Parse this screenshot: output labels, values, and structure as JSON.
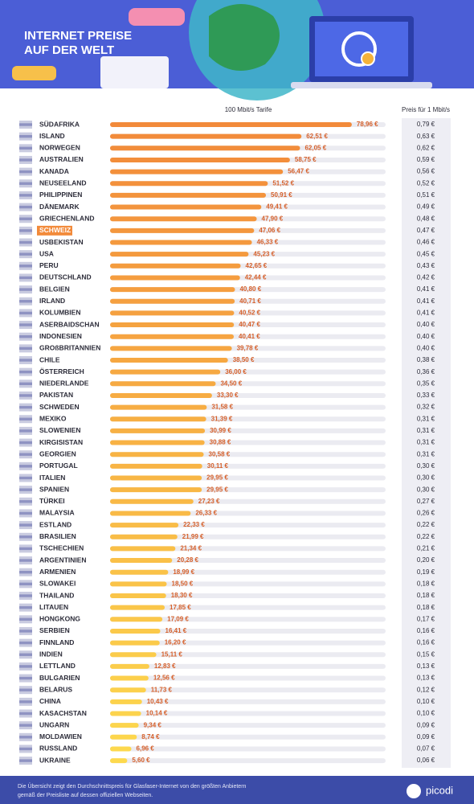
{
  "chart_data": {
    "type": "bar",
    "orientation": "horizontal",
    "title": [
      "INTERNET PREISE",
      "AUF DER WELT"
    ],
    "categories": [
      "SÜDAFRIKA",
      "ISLAND",
      "NORWEGEN",
      "AUSTRALIEN",
      "KANADA",
      "NEUSEELAND",
      "PHILIPPINEN",
      "DÄNEMARK",
      "GRIECHENLAND",
      "SCHWEIZ",
      "USBEKISTAN",
      "USA",
      "PERU",
      "DEUTSCHLAND",
      "BELGIEN",
      "IRLAND",
      "KOLUMBIEN",
      "ASERBAIDSCHAN",
      "INDONESIEN",
      "GROßBRITANNIEN",
      "CHILE",
      "ÖSTERREICH",
      "NIEDERLANDE",
      "PAKISTAN",
      "SCHWEDEN",
      "MEXIKO",
      "SLOWENIEN",
      "KIRGISISTAN",
      "GEORGIEN",
      "PORTUGAL",
      "ITALIEN",
      "SPANIEN",
      "TÜRKEI",
      "MALAYSIA",
      "ESTLAND",
      "BRASILIEN",
      "TSCHECHIEN",
      "ARGENTINIEN",
      "ARMENIEN",
      "SLOWAKEI",
      "THAILAND",
      "LITAUEN",
      "HONGKONG",
      "SERBIEN",
      "FINNLAND",
      "INDIEN",
      "LETTLAND",
      "BULGARIEN",
      "BELARUS",
      "CHINA",
      "KASACHSTAN",
      "UNGARN",
      "MOLDAWIEN",
      "RUSSLAND",
      "UKRAINE"
    ],
    "series": [
      {
        "name": "100 Mbit/s Tarife",
        "color": "#f28a3a",
        "color_end": "#fdd94e",
        "values": [
          78.96,
          62.51,
          62.05,
          58.75,
          56.47,
          51.52,
          50.91,
          49.41,
          47.9,
          47.06,
          46.33,
          45.23,
          42.65,
          42.44,
          40.8,
          40.71,
          40.52,
          40.47,
          40.41,
          39.78,
          38.5,
          36.0,
          34.5,
          33.3,
          31.58,
          31.39,
          30.99,
          30.88,
          30.58,
          30.11,
          29.95,
          29.95,
          27.23,
          26.33,
          22.33,
          21.99,
          21.34,
          20.28,
          18.99,
          18.5,
          18.3,
          17.85,
          17.09,
          16.41,
          16.2,
          15.11,
          12.83,
          12.56,
          11.73,
          10.43,
          10.14,
          9.34,
          8.74,
          6.96,
          5.6
        ],
        "value_labels": [
          "78,96 €",
          "62,51 €",
          "62,05 €",
          "58,75 €",
          "56,47 €",
          "51,52 €",
          "50,91 €",
          "49,41 €",
          "47,90 €",
          "47,06 €",
          "46,33 €",
          "45,23 €",
          "42,65 €",
          "42,44 €",
          "40,80 €",
          "40,71 €",
          "40,52 €",
          "40,47 €",
          "40,41 €",
          "39,78 €",
          "38,50 €",
          "36,00 €",
          "34,50 €",
          "33,30 €",
          "31,58 €",
          "31,39 €",
          "30,99 €",
          "30,88 €",
          "30,58 €",
          "30,11 €",
          "29,95 €",
          "29,95 €",
          "27,23 €",
          "26,33 €",
          "22,33 €",
          "21,99 €",
          "21,34 €",
          "20,28 €",
          "18,99 €",
          "18,50 €",
          "18,30 €",
          "17,85 €",
          "17,09 €",
          "16,41 €",
          "16,20 €",
          "15,11 €",
          "12,83 €",
          "12,56 €",
          "11,73 €",
          "10,43 €",
          "10,14 €",
          "9,34 €",
          "8,74 €",
          "6,96 €",
          "5,60 €"
        ]
      },
      {
        "name": "Preis für 1 Mbit/s",
        "values": [
          0.79,
          0.63,
          0.62,
          0.59,
          0.56,
          0.52,
          0.51,
          0.49,
          0.48,
          0.47,
          0.46,
          0.45,
          0.43,
          0.42,
          0.41,
          0.41,
          0.41,
          0.4,
          0.4,
          0.4,
          0.38,
          0.36,
          0.35,
          0.33,
          0.32,
          0.31,
          0.31,
          0.31,
          0.31,
          0.3,
          0.3,
          0.3,
          0.27,
          0.26,
          0.22,
          0.22,
          0.21,
          0.2,
          0.19,
          0.18,
          0.18,
          0.18,
          0.17,
          0.16,
          0.16,
          0.15,
          0.13,
          0.13,
          0.12,
          0.1,
          0.1,
          0.09,
          0.09,
          0.07,
          0.06
        ],
        "value_labels": [
          "0,79 €",
          "0,63 €",
          "0,62 €",
          "0,59 €",
          "0,56 €",
          "0,52 €",
          "0,51 €",
          "0,49 €",
          "0,48 €",
          "0,47 €",
          "0,46 €",
          "0,45 €",
          "0,43 €",
          "0,42 €",
          "0,41 €",
          "0,41 €",
          "0,41 €",
          "0,40 €",
          "0,40 €",
          "0,40 €",
          "0,38 €",
          "0,36 €",
          "0,35 €",
          "0,33 €",
          "0,32 €",
          "0,31 €",
          "0,31 €",
          "0,31 €",
          "0,31 €",
          "0,30 €",
          "0,30 €",
          "0,30 €",
          "0,27 €",
          "0,26 €",
          "0,22 €",
          "0,22 €",
          "0,21 €",
          "0,20 €",
          "0,19 €",
          "0,18 €",
          "0,18 €",
          "0,18 €",
          "0,17 €",
          "0,16 €",
          "0,16 €",
          "0,15 €",
          "0,13 €",
          "0,13 €",
          "0,12 €",
          "0,10 €",
          "0,10 €",
          "0,09 €",
          "0,09 €",
          "0,07 €",
          "0,06 €"
        ]
      }
    ],
    "xlim": [
      0,
      90
    ],
    "highlight": "SCHWEIZ",
    "footer": [
      "Die Übersicht zeigt den Durchschnittspreis für Glasfaser-Internet von den größten Anbietern",
      "gemäß der Preisliste auf dessen offiziellen Webseiten."
    ],
    "brand": "picodi"
  }
}
